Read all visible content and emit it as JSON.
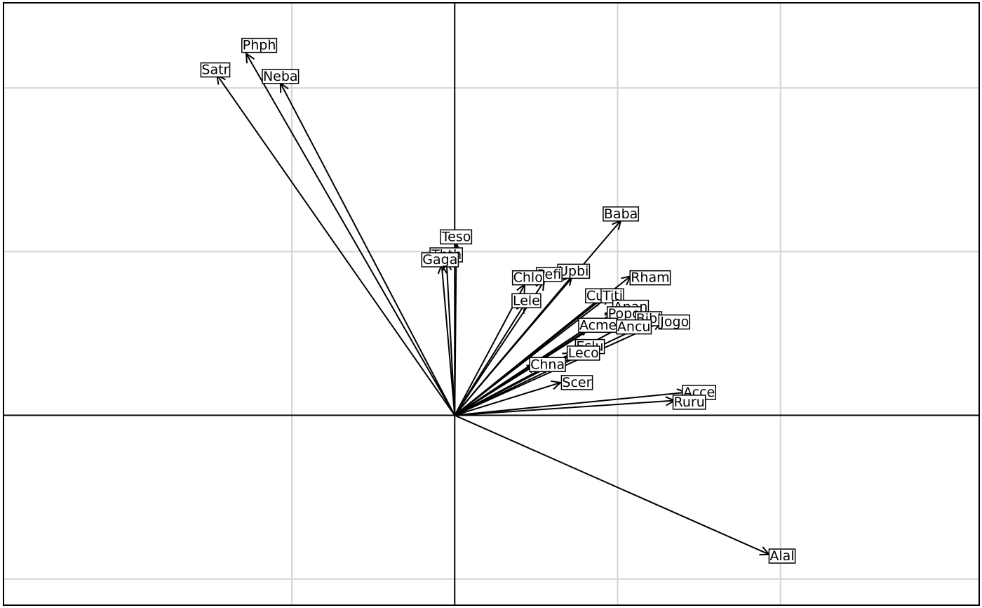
{
  "chart_data": {
    "type": "scatter",
    "subtype": "loading-arrows-biplot",
    "title": "",
    "xlabel": "",
    "ylabel": "",
    "xlim": [
      -0.277,
      0.322
    ],
    "ylim": [
      -0.116,
      0.252
    ],
    "grid": true,
    "grid_x": [
      -0.1,
      0,
      0.1,
      0.2
    ],
    "grid_y": [
      -0.1,
      0,
      0.1,
      0.2
    ],
    "axis_lines": {
      "x": 0,
      "y": 0
    },
    "colors": {
      "grid": "#d3d3d3",
      "arrow": "#000000",
      "label_border": "#000000",
      "label_fill": "#ffffff"
    },
    "points": [
      {
        "name": "Phph",
        "x": -0.128,
        "y": 0.221,
        "label_x": -0.12,
        "label_y": 0.226
      },
      {
        "name": "Satr",
        "x": -0.146,
        "y": 0.208,
        "label_x": -0.147,
        "label_y": 0.211
      },
      {
        "name": "Neba",
        "x": -0.107,
        "y": 0.203,
        "label_x": -0.107,
        "label_y": 0.207
      },
      {
        "name": "Teso",
        "x": 0.001,
        "y": 0.105,
        "label_x": 0.001,
        "label_y": 0.109
      },
      {
        "name": "Thth",
        "x": -0.005,
        "y": 0.094,
        "label_x": -0.005,
        "label_y": 0.098
      },
      {
        "name": "Gaga",
        "x": -0.008,
        "y": 0.092,
        "label_x": -0.009,
        "label_y": 0.095
      },
      {
        "name": "Baba",
        "x": 0.102,
        "y": 0.119,
        "label_x": 0.102,
        "label_y": 0.123
      },
      {
        "name": "Rham",
        "x": 0.108,
        "y": 0.085,
        "label_x": 0.12,
        "label_y": 0.084
      },
      {
        "name": "Upbi",
        "x": 0.072,
        "y": 0.085,
        "label_x": 0.073,
        "label_y": 0.088
      },
      {
        "name": "Pefi",
        "x": 0.055,
        "y": 0.082,
        "label_x": 0.058,
        "label_y": 0.086
      },
      {
        "name": "Chlo",
        "x": 0.043,
        "y": 0.08,
        "label_x": 0.045,
        "label_y": 0.084
      },
      {
        "name": "Lele",
        "x": 0.043,
        "y": 0.068,
        "label_x": 0.044,
        "label_y": 0.07
      },
      {
        "name": "Cuca",
        "x": 0.09,
        "y": 0.072,
        "label_x": 0.091,
        "label_y": 0.073
      },
      {
        "name": "Titi",
        "x": 0.095,
        "y": 0.073,
        "label_x": 0.097,
        "label_y": 0.073
      },
      {
        "name": "Anan",
        "x": 0.098,
        "y": 0.063,
        "label_x": 0.108,
        "label_y": 0.066
      },
      {
        "name": "Popo",
        "x": 0.098,
        "y": 0.062,
        "label_x": 0.104,
        "label_y": 0.062
      },
      {
        "name": "Bibi",
        "x": 0.116,
        "y": 0.055,
        "label_x": 0.119,
        "label_y": 0.059
      },
      {
        "name": "Jogo",
        "x": 0.127,
        "y": 0.057,
        "label_x": 0.135,
        "label_y": 0.057
      },
      {
        "name": "Acme",
        "x": 0.082,
        "y": 0.054,
        "label_x": 0.088,
        "label_y": 0.055
      },
      {
        "name": "Ancu",
        "x": 0.108,
        "y": 0.057,
        "label_x": 0.11,
        "label_y": 0.054
      },
      {
        "name": "Eslu",
        "x": 0.08,
        "y": 0.041,
        "label_x": 0.083,
        "label_y": 0.042
      },
      {
        "name": "Leco",
        "x": 0.072,
        "y": 0.038,
        "label_x": 0.079,
        "label_y": 0.038
      },
      {
        "name": "Chna",
        "x": 0.05,
        "y": 0.031,
        "label_x": 0.057,
        "label_y": 0.031
      },
      {
        "name": "Scer",
        "x": 0.065,
        "y": 0.02,
        "label_x": 0.075,
        "label_y": 0.02
      },
      {
        "name": "Acce",
        "x": 0.142,
        "y": 0.014,
        "label_x": 0.15,
        "label_y": 0.014
      },
      {
        "name": "Ruru",
        "x": 0.135,
        "y": 0.009,
        "label_x": 0.144,
        "label_y": 0.008
      },
      {
        "name": "Alal",
        "x": 0.193,
        "y": -0.085,
        "label_x": 0.201,
        "label_y": -0.086
      }
    ]
  }
}
